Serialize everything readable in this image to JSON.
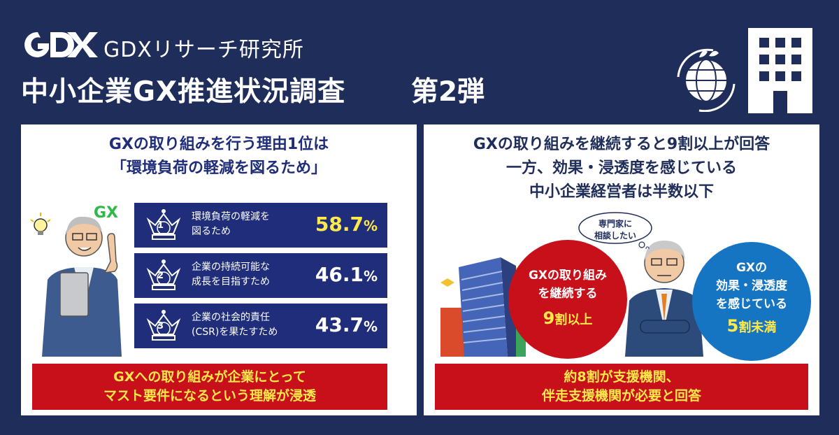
{
  "header": {
    "brand": "GDXリサーチ研究所",
    "title": "中小企業GX推進状況調査",
    "subtitle": "第2弾"
  },
  "left": {
    "heading_line1": "GXの取り組みを行う理由1位は",
    "heading_line2": "「環境負荷の軽減を図るため」",
    "gx_tag": "GX",
    "ranks": [
      {
        "rank": "1",
        "label_line1": "環境負荷の軽減を",
        "label_line2": "図るため",
        "value": "58.7",
        "unit": "%"
      },
      {
        "rank": "2",
        "label_line1": "企業の持続可能な",
        "label_line2": "成長を目指すため",
        "value": "46.1",
        "unit": "%"
      },
      {
        "rank": "3",
        "label_line1": "企業の社会的責任",
        "label_line2": "(CSR)を果たすため",
        "value": "43.7",
        "unit": "%"
      }
    ],
    "banner_line1": "GXへの取り組みが企業にとって",
    "banner_line2": "マスト要件になるという理解が浸透"
  },
  "right": {
    "heading_line1": "GXの取り組みを継続すると9割以上が回答",
    "heading_line2": "一方、効果・浸透度を感じている",
    "heading_line3": "中小企業経営者は半数以下",
    "bubble_line1": "専門家に",
    "bubble_line2": "相談したい",
    "red_circle": {
      "line1": "GXの取り組み",
      "line2": "を継続する",
      "big_num": "9",
      "big_rest": "割以上"
    },
    "blue_circle": {
      "line1": "GXの",
      "line2": "効果・浸透度",
      "line3": "を感じている",
      "big_num": "5",
      "big_rest": "割未満"
    },
    "banner_line1": "約8割が支援機関、",
    "banner_line2": "伴走支援機関が必要と回答"
  },
  "colors": {
    "navy": "#1f2d5a",
    "rank_blue": "#1f2d7a",
    "red": "#c8101a",
    "yellow": "#ffe94a",
    "blue": "#1575c2",
    "green": "#2db84a"
  },
  "icons": [
    "gdx-logo-icon",
    "globe-recycle-icon",
    "office-building-icon",
    "crown-icon",
    "businessman-illustration",
    "lightbulb-icon",
    "skyscraper-illustration",
    "thinking-executive-illustration"
  ]
}
